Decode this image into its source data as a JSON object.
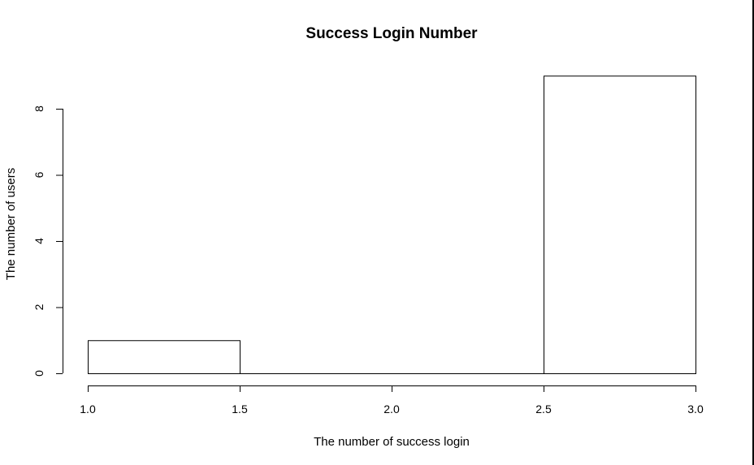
{
  "chart_data": {
    "type": "bar",
    "title": "Success Login Number",
    "xlabel": "The number of success login",
    "ylabel": "The number of users",
    "bins": [
      {
        "start": 1.0,
        "end": 1.5,
        "count": 1
      },
      {
        "start": 1.5,
        "end": 2.0,
        "count": 0
      },
      {
        "start": 2.0,
        "end": 2.5,
        "count": 0
      },
      {
        "start": 2.5,
        "end": 3.0,
        "count": 9
      }
    ],
    "xlim": [
      1.0,
      3.0
    ],
    "ylim": [
      0,
      9
    ],
    "x_ticks": [
      "1.0",
      "1.5",
      "2.0",
      "2.5",
      "3.0"
    ],
    "y_ticks": [
      "0",
      "2",
      "4",
      "6",
      "8"
    ],
    "grid": false
  }
}
